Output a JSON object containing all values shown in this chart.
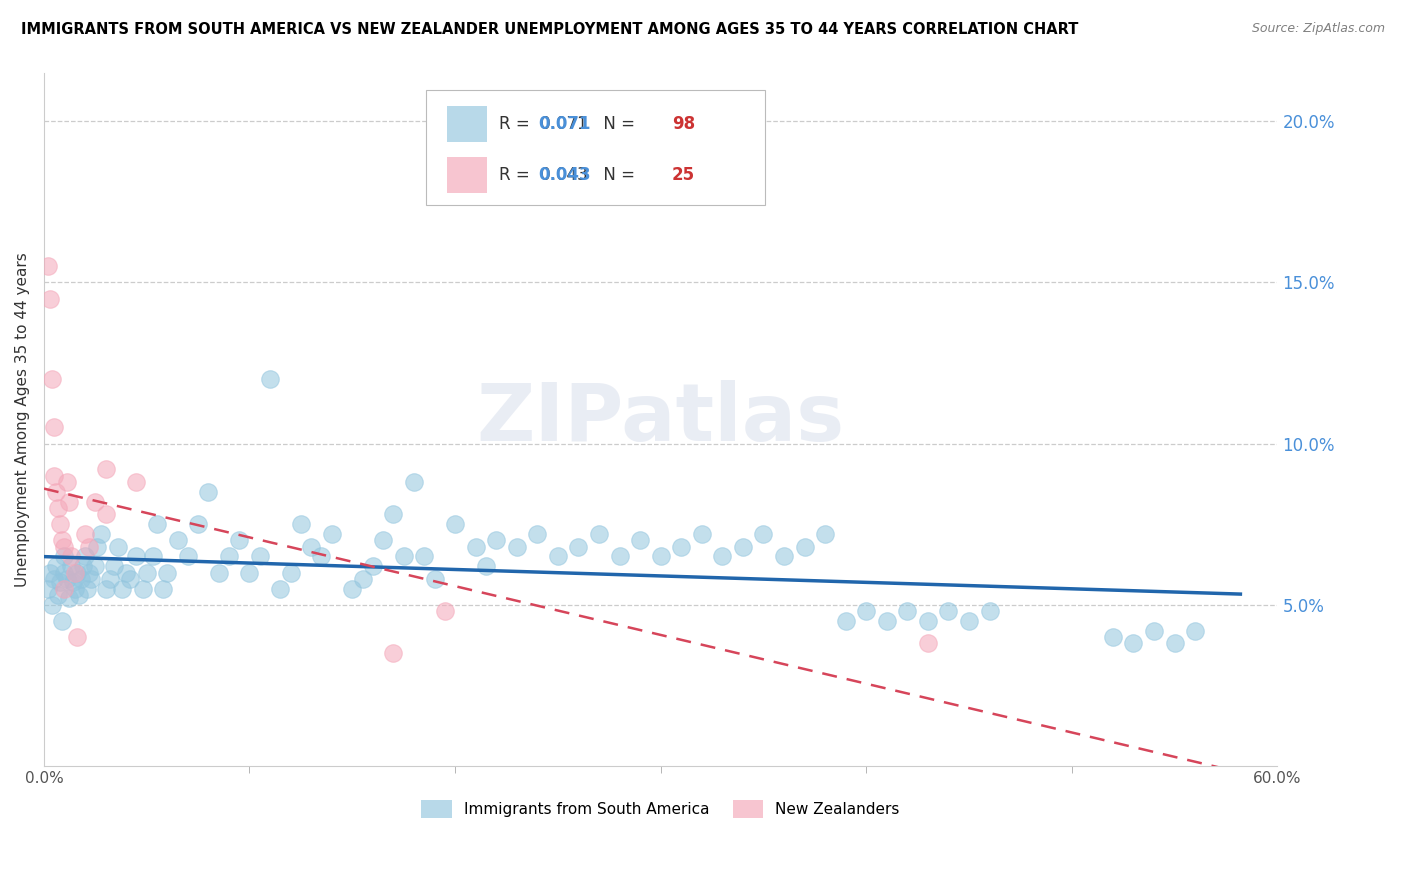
{
  "title": "IMMIGRANTS FROM SOUTH AMERICA VS NEW ZEALANDER UNEMPLOYMENT AMONG AGES 35 TO 44 YEARS CORRELATION CHART",
  "source": "Source: ZipAtlas.com",
  "ylabel": "Unemployment Among Ages 35 to 44 years",
  "xmin": 0.0,
  "xmax": 0.6,
  "ymin": 0.0,
  "ymax": 0.215,
  "yticks": [
    0.05,
    0.1,
    0.15,
    0.2
  ],
  "ytick_labels": [
    "5.0%",
    "10.0%",
    "15.0%",
    "20.0%"
  ],
  "xtick_left_label": "0.0%",
  "xtick_right_label": "60.0%",
  "legend1_label": "Immigrants from South America",
  "legend2_label": "New Zealanders",
  "r1": 0.071,
  "n1": 98,
  "r2": 0.043,
  "n2": 25,
  "blue_dot_color": "#92c5de",
  "pink_dot_color": "#f4a6b8",
  "blue_line_color": "#2166ac",
  "pink_line_color": "#d6455a",
  "watermark": "ZIPatlas",
  "blue_scatter_x": [
    0.002,
    0.003,
    0.004,
    0.005,
    0.006,
    0.007,
    0.008,
    0.009,
    0.01,
    0.01,
    0.011,
    0.012,
    0.013,
    0.014,
    0.015,
    0.016,
    0.017,
    0.018,
    0.019,
    0.02,
    0.021,
    0.022,
    0.023,
    0.025,
    0.026,
    0.028,
    0.03,
    0.032,
    0.034,
    0.036,
    0.038,
    0.04,
    0.042,
    0.045,
    0.048,
    0.05,
    0.053,
    0.055,
    0.058,
    0.06,
    0.065,
    0.07,
    0.075,
    0.08,
    0.085,
    0.09,
    0.095,
    0.1,
    0.105,
    0.11,
    0.115,
    0.12,
    0.125,
    0.13,
    0.135,
    0.14,
    0.15,
    0.155,
    0.16,
    0.165,
    0.17,
    0.175,
    0.18,
    0.185,
    0.19,
    0.2,
    0.21,
    0.215,
    0.22,
    0.23,
    0.24,
    0.25,
    0.26,
    0.27,
    0.28,
    0.29,
    0.3,
    0.31,
    0.32,
    0.33,
    0.34,
    0.35,
    0.36,
    0.37,
    0.38,
    0.39,
    0.4,
    0.41,
    0.42,
    0.43,
    0.44,
    0.45,
    0.46,
    0.52,
    0.53,
    0.54,
    0.55,
    0.56
  ],
  "blue_scatter_y": [
    0.055,
    0.06,
    0.05,
    0.058,
    0.062,
    0.053,
    0.057,
    0.045,
    0.06,
    0.065,
    0.058,
    0.052,
    0.062,
    0.057,
    0.055,
    0.06,
    0.053,
    0.058,
    0.062,
    0.065,
    0.055,
    0.06,
    0.058,
    0.062,
    0.068,
    0.072,
    0.055,
    0.058,
    0.062,
    0.068,
    0.055,
    0.06,
    0.058,
    0.065,
    0.055,
    0.06,
    0.065,
    0.075,
    0.055,
    0.06,
    0.07,
    0.065,
    0.075,
    0.085,
    0.06,
    0.065,
    0.07,
    0.06,
    0.065,
    0.12,
    0.055,
    0.06,
    0.075,
    0.068,
    0.065,
    0.072,
    0.055,
    0.058,
    0.062,
    0.07,
    0.078,
    0.065,
    0.088,
    0.065,
    0.058,
    0.075,
    0.068,
    0.062,
    0.07,
    0.068,
    0.072,
    0.065,
    0.068,
    0.072,
    0.065,
    0.07,
    0.065,
    0.068,
    0.072,
    0.065,
    0.068,
    0.072,
    0.065,
    0.068,
    0.072,
    0.045,
    0.048,
    0.045,
    0.048,
    0.045,
    0.048,
    0.045,
    0.048,
    0.04,
    0.038,
    0.042,
    0.038,
    0.042
  ],
  "pink_scatter_x": [
    0.002,
    0.003,
    0.004,
    0.005,
    0.005,
    0.006,
    0.007,
    0.008,
    0.009,
    0.01,
    0.01,
    0.011,
    0.012,
    0.013,
    0.015,
    0.016,
    0.02,
    0.022,
    0.025,
    0.03,
    0.03,
    0.045,
    0.17,
    0.195,
    0.43
  ],
  "pink_scatter_y": [
    0.155,
    0.145,
    0.12,
    0.105,
    0.09,
    0.085,
    0.08,
    0.075,
    0.07,
    0.068,
    0.055,
    0.088,
    0.082,
    0.065,
    0.06,
    0.04,
    0.072,
    0.068,
    0.082,
    0.092,
    0.078,
    0.088,
    0.035,
    0.048,
    0.038
  ]
}
